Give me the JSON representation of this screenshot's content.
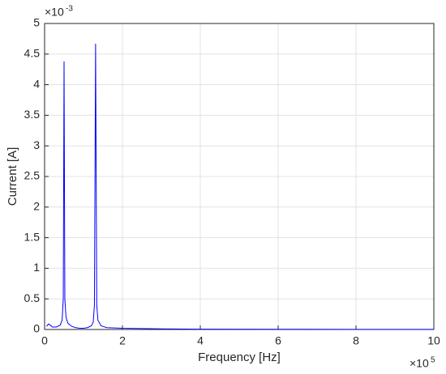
{
  "chart_data": {
    "type": "line",
    "x_label": "Frequency [Hz]",
    "y_label": "Current [A]",
    "x_multiplier": {
      "base": "×10",
      "exponent": "5"
    },
    "y_multiplier": {
      "base": "×10",
      "exponent": "-3"
    },
    "xlim": [
      0,
      10
    ],
    "xticks": [
      0,
      2,
      4,
      6,
      8,
      10
    ],
    "ylim": [
      0,
      5
    ],
    "yticks": [
      0,
      0.5,
      1,
      1.5,
      2,
      2.5,
      3,
      3.5,
      4,
      4.5,
      5
    ],
    "grid": true,
    "x": [
      0.05,
      0.1,
      0.15,
      0.2,
      0.3,
      0.4,
      0.45,
      0.48,
      0.5,
      0.52,
      0.55,
      0.6,
      0.7,
      0.8,
      0.9,
      1.0,
      1.1,
      1.2,
      1.25,
      1.28,
      1.31,
      1.34,
      1.37,
      1.45,
      1.6,
      2.0,
      3,
      4,
      6,
      8,
      10
    ],
    "series": [
      {
        "color": "#0000ff",
        "values": [
          0.05,
          0.09,
          0.07,
          0.04,
          0.04,
          0.07,
          0.15,
          0.5,
          4.38,
          0.5,
          0.2,
          0.1,
          0.05,
          0.03,
          0.02,
          0.02,
          0.03,
          0.06,
          0.12,
          0.4,
          4.67,
          0.4,
          0.15,
          0.06,
          0.03,
          0.02,
          0.01,
          0.005,
          0.003,
          0.002,
          0.002
        ]
      }
    ]
  }
}
